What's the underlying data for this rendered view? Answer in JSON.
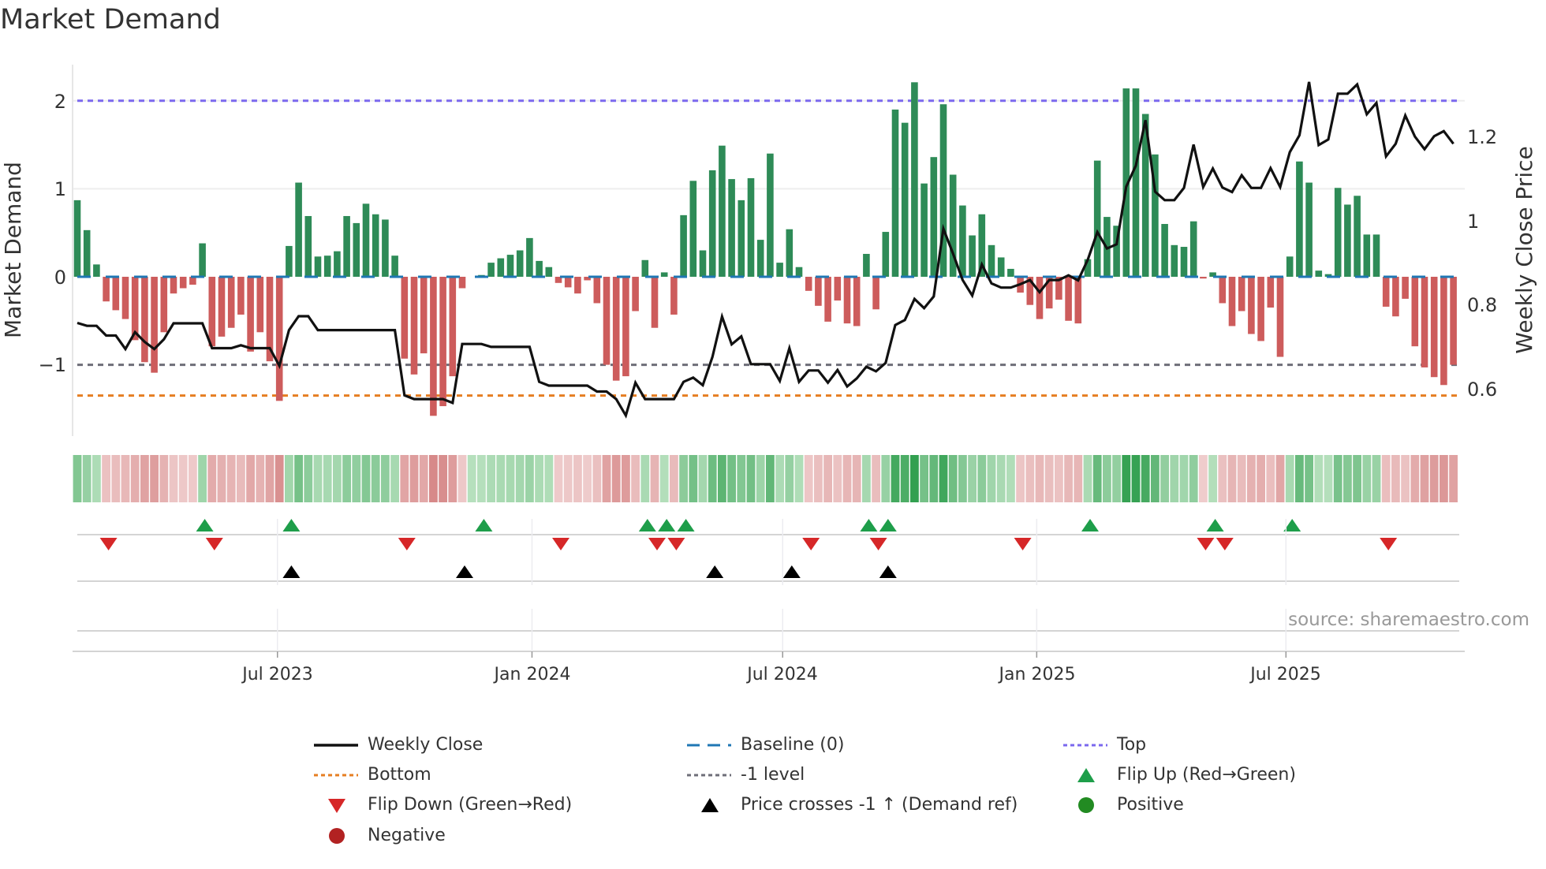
{
  "title": "Market Demand",
  "source": "source: sharemaestro.com",
  "colors": {
    "positive_bar": "#2e8b57",
    "negative_bar": "#cd5c5c",
    "price_line": "#111111",
    "baseline": "#1f77b4",
    "top": "#7b68ee",
    "bottom": "#e67e22",
    "minus_one": "#6e6e78",
    "flip_up": "#1e9e4a",
    "flip_down": "#d62728",
    "price_cross": "#000000",
    "positive_dot": "#228b22",
    "negative_dot": "#b22222"
  },
  "chart_data": {
    "type": "bar+line",
    "title": "Market Demand",
    "ylabel": "Market Demand",
    "y2label": "Weekly Close Price",
    "ylim": [
      -1.81,
      2.41
    ],
    "y2lim": [
      0.488,
      1.371
    ],
    "yticks": [
      {
        "v": 2,
        "label": "2"
      },
      {
        "v": 1,
        "label": "1"
      },
      {
        "v": 0,
        "label": "0"
      },
      {
        "v": -1,
        "label": "−1"
      }
    ],
    "y2ticks": [
      {
        "v": 1.2,
        "label": "1.2"
      },
      {
        "v": 1.0,
        "label": "1"
      },
      {
        "v": 0.8,
        "label": "0.8"
      },
      {
        "v": 0.6,
        "label": "0.6"
      }
    ],
    "x_start": "2023-02-06",
    "x_frequency": "weekly",
    "xticks": [
      {
        "week": 20.8,
        "label": "Jul 2023"
      },
      {
        "week": 47.25,
        "label": "Jan 2024"
      },
      {
        "week": 73.3,
        "label": "Jul 2024"
      },
      {
        "week": 99.7,
        "label": "Jan 2025"
      },
      {
        "week": 125.6,
        "label": "Jul 2025"
      }
    ],
    "levels": {
      "top": 2.0,
      "baseline": 0,
      "minus_one": -1,
      "bottom": -1.35
    },
    "demand": [
      0.87,
      0.53,
      0.14,
      -0.28,
      -0.38,
      -0.48,
      -0.72,
      -0.97,
      -1.09,
      -0.63,
      -0.19,
      -0.13,
      -0.09,
      0.38,
      -0.79,
      -0.68,
      -0.58,
      -0.43,
      -0.85,
      -0.63,
      -0.96,
      -1.41,
      0.35,
      1.07,
      0.69,
      0.23,
      0.24,
      0.29,
      0.69,
      0.61,
      0.83,
      0.71,
      0.65,
      0.24,
      -0.93,
      -1.11,
      -0.87,
      -1.58,
      -1.47,
      -1.13,
      -0.13,
      0,
      0.02,
      0.16,
      0.21,
      0.25,
      0.3,
      0.44,
      0.18,
      0.11,
      -0.07,
      -0.12,
      -0.19,
      -0.04,
      -0.3,
      -1.0,
      -1.18,
      -1.13,
      -0.39,
      0.19,
      -0.58,
      0.05,
      -0.43,
      0.7,
      1.09,
      0.3,
      1.21,
      1.49,
      1.11,
      0.87,
      1.12,
      0.42,
      1.4,
      0.16,
      0.54,
      0.11,
      -0.16,
      -0.33,
      -0.51,
      -0.27,
      -0.53,
      -0.56,
      0.26,
      -0.37,
      0.51,
      1.9,
      1.75,
      2.21,
      1.06,
      1.36,
      1.96,
      1.16,
      0.81,
      0.47,
      0.71,
      0.36,
      0.22,
      0.09,
      -0.18,
      -0.32,
      -0.48,
      -0.36,
      -0.26,
      -0.5,
      -0.53,
      0.2,
      1.32,
      0.68,
      0.58,
      2.14,
      2.14,
      1.85,
      1.39,
      0.6,
      0.36,
      0.34,
      0.63,
      -0.02,
      0.05,
      -0.3,
      -0.56,
      -0.39,
      -0.65,
      -0.73,
      -0.35,
      -0.91,
      0.23,
      1.31,
      1.07,
      0.07,
      0.03,
      1.01,
      0.82,
      0.92,
      0.48,
      0.48,
      -0.34,
      -0.45,
      -0.25,
      -0.79,
      -1.03,
      -1.14,
      -1.23,
      -1.0
    ],
    "weekly_close": [
      0.757,
      0.75,
      0.75,
      0.727,
      0.727,
      0.695,
      0.735,
      0.712,
      0.695,
      0.718,
      0.756,
      0.756,
      0.756,
      0.756,
      0.697,
      0.697,
      0.697,
      0.704,
      0.697,
      0.697,
      0.697,
      0.655,
      0.74,
      0.773,
      0.773,
      0.74,
      0.74,
      0.74,
      0.74,
      0.74,
      0.74,
      0.74,
      0.74,
      0.74,
      0.585,
      0.576,
      0.576,
      0.576,
      0.576,
      0.567,
      0.707,
      0.707,
      0.707,
      0.7,
      0.7,
      0.7,
      0.7,
      0.7,
      0.617,
      0.608,
      0.608,
      0.608,
      0.608,
      0.608,
      0.594,
      0.594,
      0.576,
      0.537,
      0.615,
      0.576,
      0.576,
      0.576,
      0.576,
      0.617,
      0.627,
      0.609,
      0.676,
      0.772,
      0.706,
      0.725,
      0.659,
      0.659,
      0.659,
      0.619,
      0.697,
      0.617,
      0.644,
      0.644,
      0.615,
      0.645,
      0.606,
      0.625,
      0.653,
      0.642,
      0.662,
      0.752,
      0.764,
      0.814,
      0.792,
      0.82,
      0.981,
      0.922,
      0.859,
      0.822,
      0.896,
      0.851,
      0.841,
      0.841,
      0.849,
      0.859,
      0.83,
      0.859,
      0.859,
      0.87,
      0.858,
      0.907,
      0.973,
      0.934,
      0.944,
      1.081,
      1.131,
      1.239,
      1.069,
      1.049,
      1.049,
      1.078,
      1.181,
      1.08,
      1.124,
      1.079,
      1.068,
      1.108,
      1.078,
      1.078,
      1.125,
      1.08,
      1.163,
      1.203,
      1.33,
      1.18,
      1.193,
      1.302,
      1.302,
      1.324,
      1.253,
      1.28,
      1.153,
      1.183,
      1.25,
      1.2,
      1.17,
      1.201,
      1.213,
      1.183
    ],
    "flip_up_weeks": [
      13,
      22,
      42,
      59,
      61,
      63,
      82,
      84,
      105,
      118,
      126
    ],
    "flip_down_weeks": [
      3,
      14,
      34,
      50,
      60,
      62,
      76,
      83,
      98,
      117,
      119,
      136
    ],
    "price_cross_weeks": [
      22,
      40,
      66,
      74,
      84
    ],
    "legend": [
      {
        "key": "weekly_close",
        "label": "Weekly Close"
      },
      {
        "key": "baseline",
        "label": "Baseline (0)"
      },
      {
        "key": "top",
        "label": "Top"
      },
      {
        "key": "bottom",
        "label": "Bottom"
      },
      {
        "key": "minus_one",
        "label": "-1 level"
      },
      {
        "key": "flip_up",
        "label": "Flip Up (Red→Green)"
      },
      {
        "key": "flip_down",
        "label": "Flip Down (Green→Red)"
      },
      {
        "key": "price_cross",
        "label": "Price crosses -1 ↑ (Demand ref)"
      },
      {
        "key": "positive",
        "label": "Positive"
      },
      {
        "key": "negative",
        "label": "Negative"
      }
    ],
    "legend_position": "bottom"
  }
}
